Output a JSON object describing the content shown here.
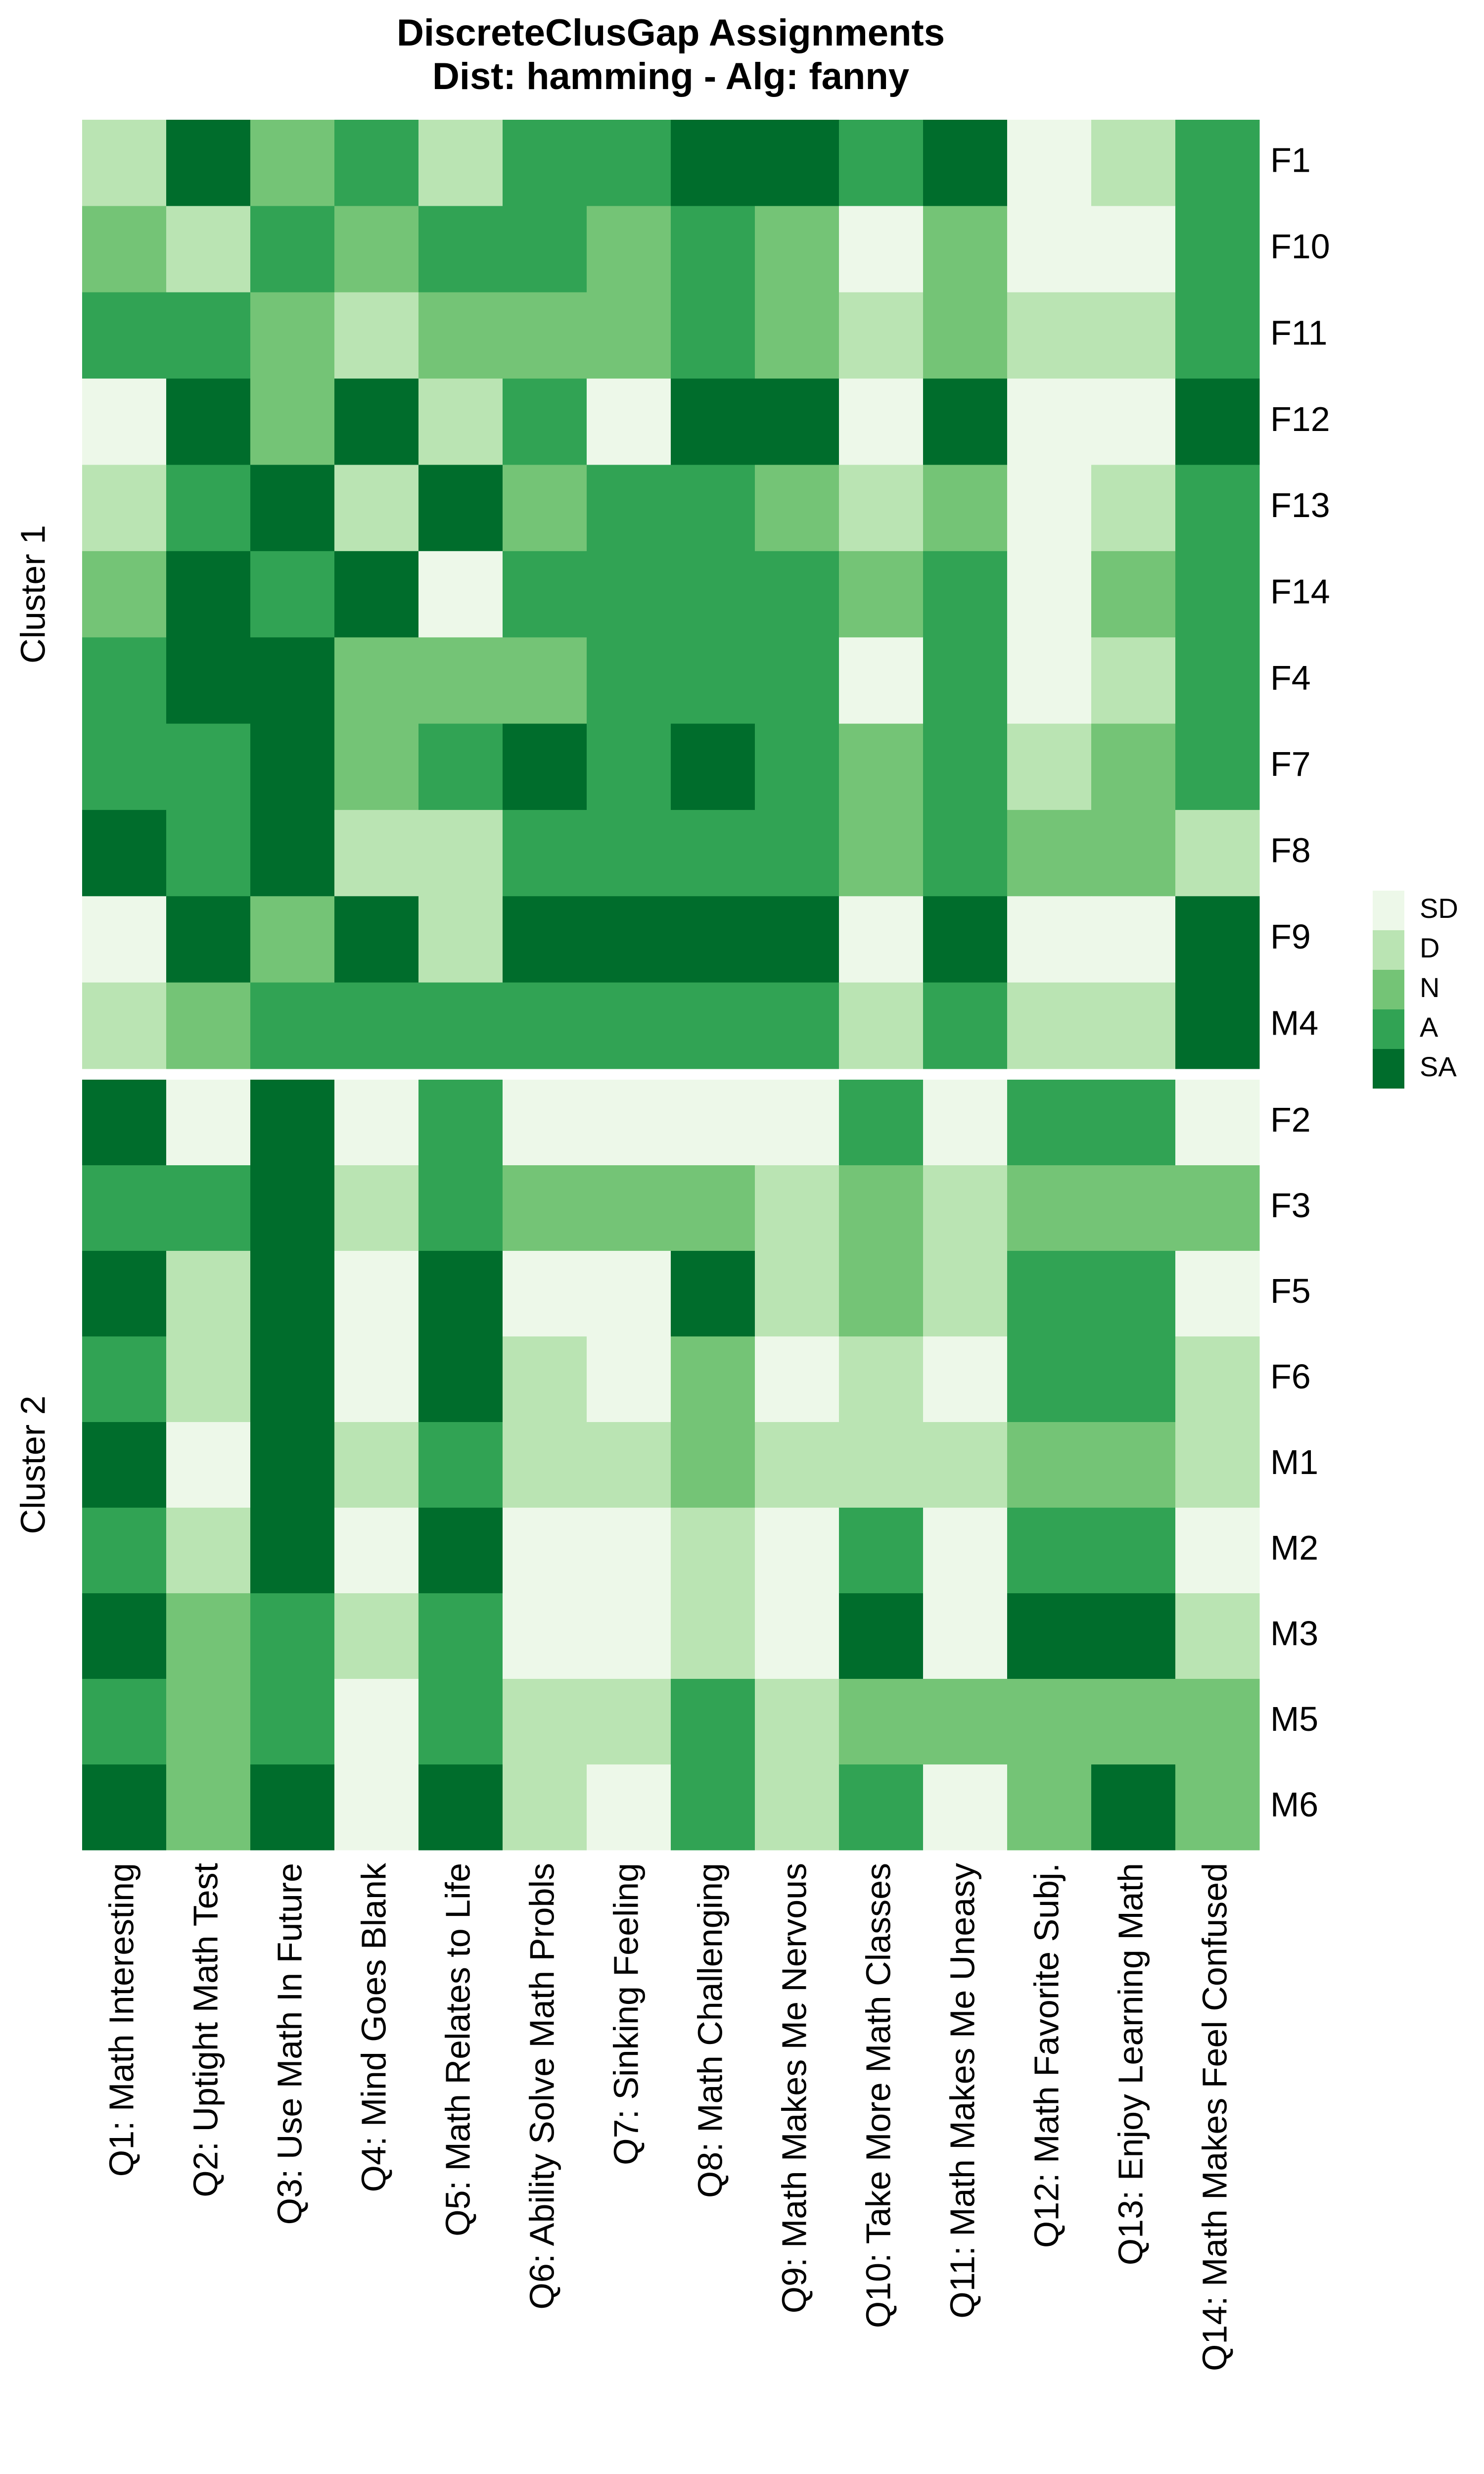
{
  "chart_data": {
    "type": "heatmap",
    "title": "DiscreteClusGap Assignments",
    "subtitle": "Dist: hamming - Alg: fanny",
    "columns": [
      "Q1: Math Interesting",
      "Q2: Uptight Math Test",
      "Q3: Use Math In Future",
      "Q4: Mind Goes Blank",
      "Q5: Math Relates to Life",
      "Q6: Ability Solve Math Probls",
      "Q7: Sinking Feeling",
      "Q8: Math Challenging",
      "Q9: Math Makes Me Nervous",
      "Q10: Take More Math Classes",
      "Q11: Math Makes Me Uneasy",
      "Q12: Math Favorite Subj.",
      "Q13: Enjoy Learning Math",
      "Q14: Math Makes Feel Confused"
    ],
    "legend": [
      {
        "label": "SD",
        "color": "#edf8e9"
      },
      {
        "label": "D",
        "color": "#bae4b3"
      },
      {
        "label": "N",
        "color": "#74c476"
      },
      {
        "label": "A",
        "color": "#31a354"
      },
      {
        "label": "SA",
        "color": "#006d2c"
      }
    ],
    "groups": [
      {
        "name": "Cluster 1",
        "rows": [
          "F1",
          "F10",
          "F11",
          "F12",
          "F13",
          "F14",
          "F4",
          "F7",
          "F8",
          "F9",
          "M4"
        ],
        "values": [
          [
            "D",
            "SA",
            "N",
            "A",
            "D",
            "A",
            "A",
            "SA",
            "SA",
            "A",
            "SA",
            "SD",
            "D",
            "A"
          ],
          [
            "N",
            "D",
            "A",
            "N",
            "A",
            "A",
            "N",
            "A",
            "N",
            "SD",
            "N",
            "SD",
            "SD",
            "A"
          ],
          [
            "A",
            "A",
            "N",
            "D",
            "N",
            "N",
            "N",
            "A",
            "N",
            "D",
            "N",
            "D",
            "D",
            "A"
          ],
          [
            "SD",
            "SA",
            "N",
            "SA",
            "D",
            "A",
            "SD",
            "SA",
            "SA",
            "SD",
            "SA",
            "SD",
            "SD",
            "SA"
          ],
          [
            "D",
            "A",
            "SA",
            "D",
            "SA",
            "N",
            "A",
            "A",
            "N",
            "D",
            "N",
            "SD",
            "D",
            "A"
          ],
          [
            "N",
            "SA",
            "A",
            "SA",
            "SD",
            "A",
            "A",
            "A",
            "A",
            "N",
            "A",
            "SD",
            "N",
            "A"
          ],
          [
            "A",
            "SA",
            "SA",
            "N",
            "N",
            "N",
            "A",
            "A",
            "A",
            "SD",
            "A",
            "SD",
            "D",
            "A"
          ],
          [
            "A",
            "A",
            "SA",
            "N",
            "A",
            "SA",
            "A",
            "SA",
            "A",
            "N",
            "A",
            "D",
            "N",
            "A"
          ],
          [
            "SA",
            "A",
            "SA",
            "D",
            "D",
            "A",
            "A",
            "A",
            "A",
            "N",
            "A",
            "N",
            "N",
            "D"
          ],
          [
            "SD",
            "SA",
            "N",
            "SA",
            "D",
            "SA",
            "SA",
            "SA",
            "SA",
            "SD",
            "SA",
            "SD",
            "SD",
            "SA"
          ],
          [
            "D",
            "N",
            "A",
            "A",
            "A",
            "A",
            "A",
            "A",
            "A",
            "D",
            "A",
            "D",
            "D",
            "SA"
          ]
        ]
      },
      {
        "name": "Cluster 2",
        "rows": [
          "F2",
          "F3",
          "F5",
          "F6",
          "M1",
          "M2",
          "M3",
          "M5",
          "M6"
        ],
        "values": [
          [
            "SA",
            "SD",
            "SA",
            "SD",
            "A",
            "SD",
            "SD",
            "SD",
            "SD",
            "A",
            "SD",
            "A",
            "A",
            "SD"
          ],
          [
            "A",
            "A",
            "SA",
            "D",
            "A",
            "N",
            "N",
            "N",
            "D",
            "N",
            "D",
            "N",
            "N",
            "N"
          ],
          [
            "SA",
            "D",
            "SA",
            "SD",
            "SA",
            "SD",
            "SD",
            "SA",
            "D",
            "N",
            "D",
            "A",
            "A",
            "SD"
          ],
          [
            "A",
            "D",
            "SA",
            "SD",
            "SA",
            "D",
            "SD",
            "N",
            "SD",
            "D",
            "SD",
            "A",
            "A",
            "D"
          ],
          [
            "SA",
            "SD",
            "SA",
            "D",
            "A",
            "D",
            "D",
            "N",
            "D",
            "D",
            "D",
            "N",
            "N",
            "D"
          ],
          [
            "A",
            "D",
            "SA",
            "SD",
            "SA",
            "SD",
            "SD",
            "D",
            "SD",
            "A",
            "SD",
            "A",
            "A",
            "SD"
          ],
          [
            "SA",
            "N",
            "A",
            "D",
            "A",
            "SD",
            "SD",
            "D",
            "SD",
            "SA",
            "SD",
            "SA",
            "SA",
            "D"
          ],
          [
            "A",
            "N",
            "A",
            "SD",
            "A",
            "D",
            "D",
            "A",
            "D",
            "N",
            "N",
            "N",
            "N",
            "N"
          ],
          [
            "SA",
            "N",
            "SA",
            "SD",
            "SA",
            "D",
            "SD",
            "A",
            "D",
            "A",
            "SD",
            "N",
            "SA",
            "N"
          ]
        ]
      }
    ]
  }
}
